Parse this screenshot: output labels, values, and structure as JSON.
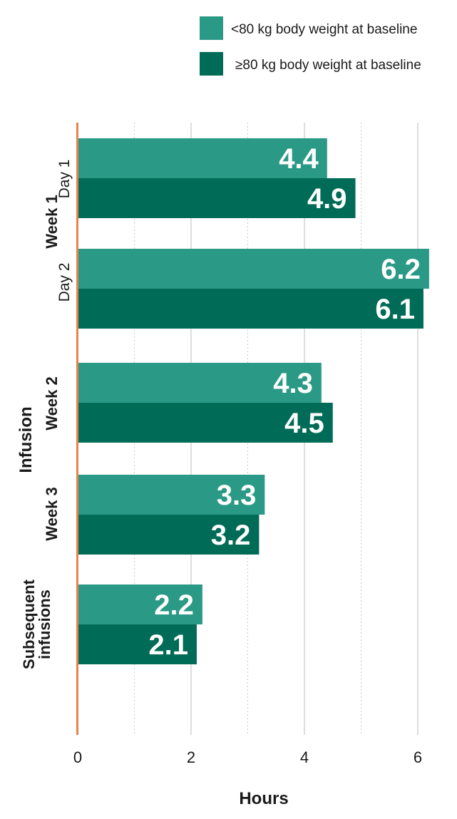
{
  "chart_data": {
    "type": "bar",
    "orientation": "horizontal",
    "xlabel": "Hours",
    "ylabel": "Infusion",
    "xlim": [
      0,
      6.3
    ],
    "xticks": [
      0,
      2,
      4,
      6
    ],
    "grid": true,
    "legend_position": "top-right",
    "colors": {
      "light": "#2a9a86",
      "dark": "#006b57",
      "axis": "#e8834a"
    },
    "series": [
      {
        "name": "<80 kg body weight at baseline",
        "color": "#2a9a86"
      },
      {
        "name": "≥80 kg body weight at baseline",
        "color": "#006b57"
      }
    ],
    "groups": [
      {
        "label": "Week 1",
        "sub": "Day 1",
        "values": [
          4.4,
          4.9
        ],
        "labels": [
          "4.4",
          "4.9"
        ]
      },
      {
        "label": "",
        "sub": "Day 2",
        "values": [
          6.2,
          6.1
        ],
        "labels": [
          "6.2",
          "6.1"
        ]
      },
      {
        "label": "Week 2",
        "sub": "",
        "values": [
          4.3,
          4.5
        ],
        "labels": [
          "4.3",
          "4.5"
        ]
      },
      {
        "label": "Week 3",
        "sub": "",
        "values": [
          3.3,
          3.2
        ],
        "labels": [
          "3.3",
          "3.2"
        ]
      },
      {
        "label": "Subsequent infusions",
        "label_lines": [
          "Subsequent",
          "infusions"
        ],
        "sub": "",
        "values": [
          2.2,
          2.1
        ],
        "labels": [
          "2.2",
          "2.1"
        ]
      }
    ]
  }
}
